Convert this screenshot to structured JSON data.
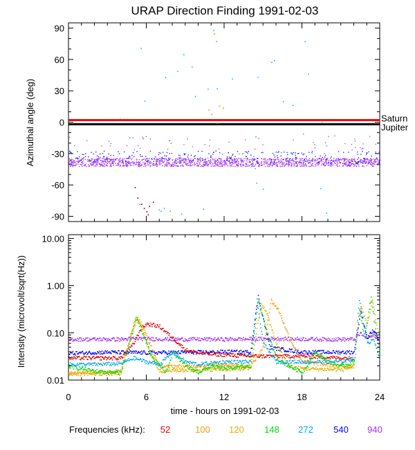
{
  "chart_data": {
    "title": "URAP Direction Finding  1991-02-03",
    "xlabel": "time - hours on 1991-02-03",
    "xlim": [
      0,
      24
    ],
    "xticks": [
      "0",
      "6",
      "12",
      "18",
      "24"
    ],
    "xtick_values": [
      0,
      6,
      12,
      18,
      24
    ],
    "panels": [
      {
        "type": "scatter",
        "name": "azimuth",
        "ylabel": "Azimuthal angle (deg)",
        "ylim": [
          -95,
          95
        ],
        "yticks": [
          "90",
          "60",
          "30",
          "0",
          "-30",
          "-60",
          "-90"
        ],
        "ytick_values": [
          90,
          60,
          30,
          0,
          -30,
          -60,
          -90
        ],
        "reference_lines": [
          {
            "name": "Saturn",
            "value": 2,
            "color": "#ff0000"
          },
          {
            "name": "Jupiter",
            "value": -2,
            "color": "#000000"
          }
        ],
        "series": [
          {
            "freq": "940",
            "color": "#a030f0",
            "band_center": -38,
            "band_spread": 4
          },
          {
            "freq": "540",
            "color": "#0000ff",
            "band_center": -33,
            "band_spread": 6
          },
          {
            "freq": "272",
            "color": "#00a8f0",
            "scattered": true
          },
          {
            "freq": "100",
            "color": "#ff9900",
            "points": [
              [
                11.2,
                85
              ],
              [
                10.8,
                12
              ],
              [
                11.0,
                8
              ],
              [
                11.6,
                16
              ],
              [
                11.9,
                14
              ]
            ]
          },
          {
            "freq": "52",
            "color": "#dd0000",
            "points": [
              [
                5.1,
                -62
              ],
              [
                5.3,
                -72
              ],
              [
                5.6,
                -78
              ],
              [
                5.8,
                -82
              ],
              [
                6.0,
                -85
              ],
              [
                6.2,
                -80
              ],
              [
                6.5,
                -76
              ],
              [
                6.1,
                -88
              ]
            ]
          }
        ]
      },
      {
        "type": "line",
        "name": "intensity",
        "ylabel": "Intensity (microvolt/sqrt(Hz))",
        "yscale": "log",
        "ylim": [
          0.01,
          12
        ],
        "yticks": [
          "10.00",
          "1.00",
          "0.10",
          "0.01"
        ],
        "ytick_values": [
          10,
          1,
          0.1,
          0.01
        ],
        "series": [
          {
            "freq": "940",
            "color": "#a030f0",
            "x": [
              0,
              4,
              5,
              8,
              12,
              14,
              16,
              20,
              22,
              22.5,
              23,
              23.5,
              24
            ],
            "y": [
              0.075,
              0.075,
              0.078,
              0.075,
              0.075,
              0.076,
              0.077,
              0.075,
              0.075,
              0.1,
              0.08,
              0.09,
              0.075
            ]
          },
          {
            "freq": "540",
            "color": "#0000ff",
            "x": [
              0,
              3,
              6,
              9,
              11,
              12,
              14,
              14.6,
              15.5,
              18,
              21,
              22,
              22.5,
              23,
              23.5,
              24
            ],
            "y": [
              0.038,
              0.04,
              0.039,
              0.04,
              0.04,
              0.041,
              0.04,
              0.6,
              0.05,
              0.04,
              0.04,
              0.04,
              0.3,
              0.08,
              0.12,
              0.06
            ]
          },
          {
            "freq": "52",
            "color": "#dd0000",
            "x": [
              0,
              2,
              4,
              5,
              5.5,
              6,
              7,
              8,
              9,
              10,
              12,
              14,
              18,
              21,
              22
            ],
            "y": [
              0.03,
              0.03,
              0.03,
              0.06,
              0.12,
              0.16,
              0.14,
              0.08,
              0.045,
              0.038,
              0.035,
              0.033,
              0.033,
              0.03,
              0.03
            ]
          },
          {
            "freq": "100",
            "color": "#ff9900",
            "x": [
              0,
              2,
              4,
              4.8,
              5.3,
              5.8,
              6.5,
              7,
              9,
              12,
              14,
              15,
              15.6,
              16.2,
              17,
              18,
              21,
              22
            ],
            "y": [
              0.015,
              0.015,
              0.016,
              0.1,
              0.22,
              0.12,
              0.04,
              0.02,
              0.02,
              0.022,
              0.02,
              0.05,
              0.5,
              0.3,
              0.08,
              0.025,
              0.02,
              0.02
            ]
          },
          {
            "freq": "120",
            "color": "#e0b000",
            "x": [
              0,
              2,
              4,
              4.6,
              5.1,
              5.6,
              6.2,
              7,
              10,
              14,
              14.8,
              15.2,
              16,
              17,
              18,
              21,
              22,
              22.5,
              23,
              23.4,
              24
            ],
            "y": [
              0.014,
              0.014,
              0.014,
              0.06,
              0.2,
              0.15,
              0.04,
              0.016,
              0.017,
              0.018,
              0.4,
              0.3,
              0.06,
              0.02,
              0.018,
              0.017,
              0.02,
              0.4,
              0.15,
              0.5,
              0.06
            ]
          },
          {
            "freq": "148",
            "color": "#00e000",
            "x": [
              0,
              2,
              3,
              4,
              4.5,
              5.2,
              5.8,
              6.5,
              7.5,
              8,
              9,
              10,
              11,
              12,
              14,
              14.6,
              15.3,
              16,
              17,
              18,
              19,
              20,
              21,
              22,
              22.4,
              22.8,
              23.3,
              23.7,
              24
            ],
            "y": [
              0.02,
              0.016,
              0.015,
              0.015,
              0.04,
              0.22,
              0.08,
              0.03,
              0.015,
              0.04,
              0.02,
              0.015,
              0.02,
              0.018,
              0.02,
              0.5,
              0.1,
              0.03,
              0.02,
              0.015,
              0.04,
              0.025,
              0.02,
              0.025,
              0.3,
              0.08,
              0.6,
              0.1,
              0.04
            ]
          },
          {
            "freq": "272",
            "color": "#00a8f0",
            "x": [
              0,
              2,
              4,
              5,
              6,
              7,
              8,
              9,
              10,
              12,
              14,
              14.5,
              15,
              16,
              18,
              20,
              21,
              22,
              22.4,
              23,
              23.5,
              24
            ],
            "y": [
              0.022,
              0.022,
              0.023,
              0.03,
              0.025,
              0.022,
              0.04,
              0.025,
              0.022,
              0.025,
              0.025,
              0.5,
              0.06,
              0.025,
              0.025,
              0.025,
              0.025,
              0.03,
              0.5,
              0.06,
              0.08,
              0.025
            ]
          }
        ]
      }
    ]
  },
  "legend": {
    "label": "Frequencies (kHz):",
    "items": [
      {
        "text": "52",
        "color": "#dd0000"
      },
      {
        "text": "100",
        "color": "#ff9900"
      },
      {
        "text": "120",
        "color": "#e0b000"
      },
      {
        "text": "148",
        "color": "#00e000"
      },
      {
        "text": "272",
        "color": "#00a8f0"
      },
      {
        "text": "540",
        "color": "#0000ff"
      },
      {
        "text": "940",
        "color": "#a030f0"
      }
    ]
  }
}
